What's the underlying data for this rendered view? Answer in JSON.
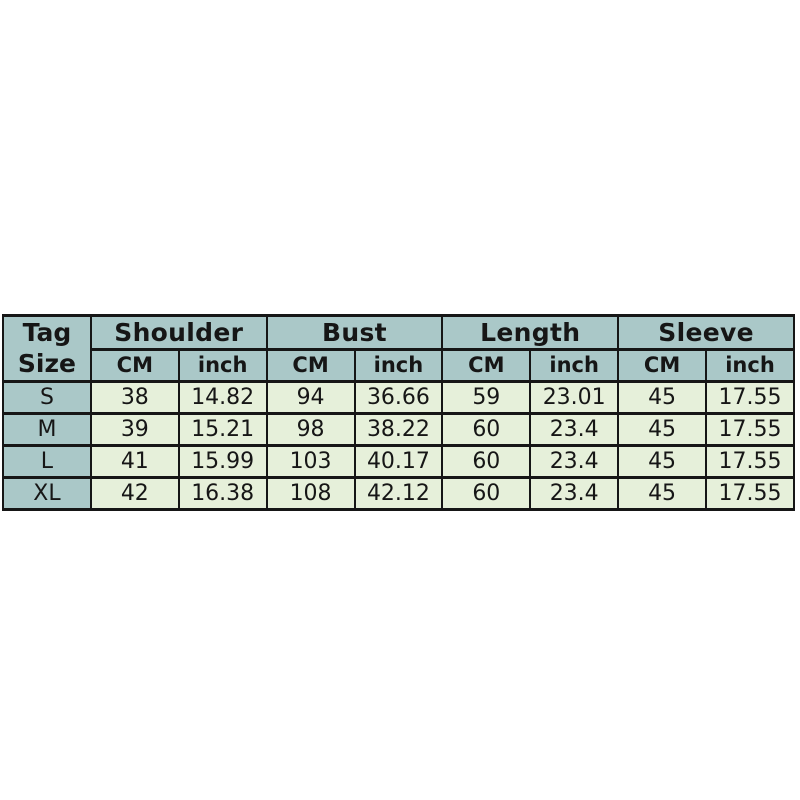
{
  "table": {
    "corner": {
      "line1": "Tag",
      "line2": "Size"
    },
    "groups": [
      {
        "label": "Shoulder"
      },
      {
        "label": "Bust"
      },
      {
        "label": "Length"
      },
      {
        "label": "Sleeve"
      }
    ],
    "units": [
      "CM",
      "inch",
      "CM",
      "inch",
      "CM",
      "inch",
      "CM",
      "inch"
    ],
    "rows": [
      {
        "size": "S",
        "values": [
          "38",
          "14.82",
          "94",
          "36.66",
          "59",
          "23.01",
          "45",
          "17.55"
        ]
      },
      {
        "size": "M",
        "values": [
          "39",
          "15.21",
          "98",
          "38.22",
          "60",
          "23.4",
          "45",
          "17.55"
        ]
      },
      {
        "size": "L",
        "values": [
          "41",
          "15.99",
          "103",
          "40.17",
          "60",
          "23.4",
          "45",
          "17.55"
        ]
      },
      {
        "size": "XL",
        "values": [
          "42",
          "16.38",
          "108",
          "42.12",
          "60",
          "23.4",
          "45",
          "17.55"
        ]
      }
    ],
    "colors": {
      "header_bg": "#aac8c8",
      "cell_bg": "#e6f0da",
      "border": "#161616",
      "text": "#161616",
      "page_bg": "#ffffff"
    }
  },
  "chart_data": {
    "type": "table",
    "column_groups": [
      "Tag Size",
      "Shoulder",
      "Bust",
      "Length",
      "Sleeve"
    ],
    "unit_subcolumns": [
      "CM",
      "inch"
    ],
    "rows": [
      {
        "tag_size": "S",
        "shoulder_cm": 38,
        "shoulder_inch": 14.82,
        "bust_cm": 94,
        "bust_inch": 36.66,
        "length_cm": 59,
        "length_inch": 23.01,
        "sleeve_cm": 45,
        "sleeve_inch": 17.55
      },
      {
        "tag_size": "M",
        "shoulder_cm": 39,
        "shoulder_inch": 15.21,
        "bust_cm": 98,
        "bust_inch": 38.22,
        "length_cm": 60,
        "length_inch": 23.4,
        "sleeve_cm": 45,
        "sleeve_inch": 17.55
      },
      {
        "tag_size": "L",
        "shoulder_cm": 41,
        "shoulder_inch": 15.99,
        "bust_cm": 103,
        "bust_inch": 40.17,
        "length_cm": 60,
        "length_inch": 23.4,
        "sleeve_cm": 45,
        "sleeve_inch": 17.55
      },
      {
        "tag_size": "XL",
        "shoulder_cm": 42,
        "shoulder_inch": 16.38,
        "bust_cm": 108,
        "bust_inch": 42.12,
        "length_cm": 60,
        "length_inch": 23.4,
        "sleeve_cm": 45,
        "sleeve_inch": 17.55
      }
    ]
  }
}
